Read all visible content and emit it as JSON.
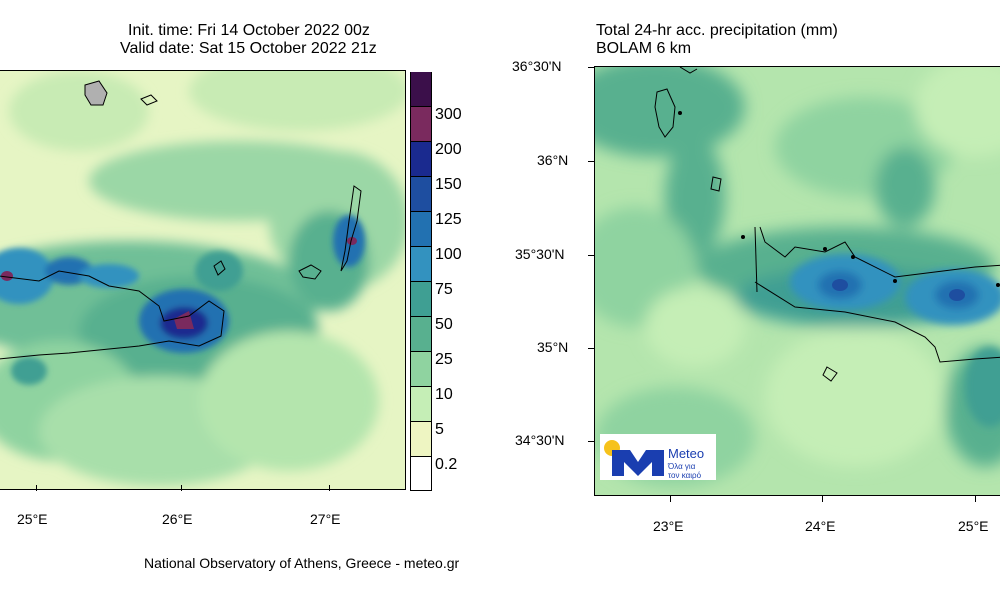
{
  "header_left": {
    "init_time": "Init. time: Fri 14 October 2022 00z",
    "valid_date": "Valid date: Sat 15 October 2022 21z"
  },
  "header_right": {
    "title": "Total 24-hr acc. precipitation (mm)",
    "model": "BOLAM 6 km"
  },
  "left_map": {
    "x_ticks": [
      "25°E",
      "26°E",
      "27°E"
    ]
  },
  "right_map": {
    "x_ticks": [
      "23°E",
      "24°E",
      "25°E"
    ],
    "y_ticks": [
      "36°30'N",
      "36°N",
      "35°30'N",
      "35°N",
      "34°30'N"
    ]
  },
  "colorbar": {
    "labels": [
      "300",
      "200",
      "150",
      "125",
      "100",
      "75",
      "50",
      "25",
      "10",
      "5",
      "0.2"
    ],
    "colors": [
      "#3b0f4a",
      "#7a2a5e",
      "#1a2a8f",
      "#1e4ea0",
      "#2271b1",
      "#3392bf",
      "#3f9f93",
      "#58b08f",
      "#8fd3a0",
      "#c5eeb6",
      "#eef5c2",
      "#ffffff"
    ]
  },
  "logo": {
    "name": "Meteo",
    "tagline_line1": "Όλα για",
    "tagline_line2": "τον καιρό"
  },
  "footer": {
    "credit": "National Observatory of Athens, Greece - meteo.gr"
  },
  "colors": {
    "sea_base": "#dff3c6",
    "land_outline": "#000000"
  }
}
